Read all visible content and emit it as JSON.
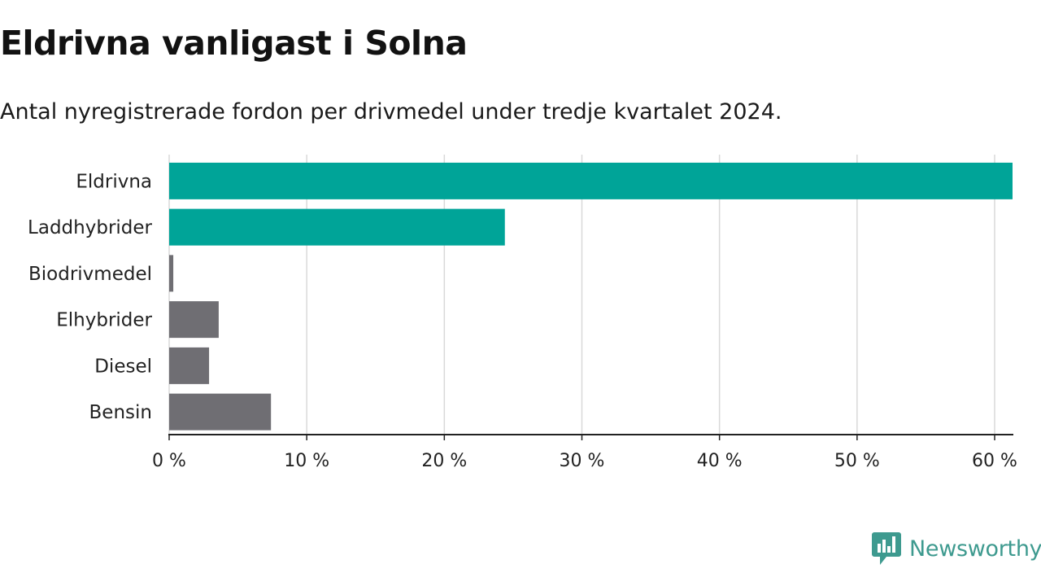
{
  "title": "Eldrivna vanligast i Solna",
  "subtitle": "Antal nyregistrerade fordon per drivmedel under tredje kvartalet 2024.",
  "brand": {
    "name": "Newsworthy",
    "icon": "newsworthy-logo-icon"
  },
  "colors": {
    "highlight": "#00a498",
    "muted": "#6f6e73",
    "grid": "#d9d9d9",
    "axis": "#222222",
    "brand": "#3e9a8f"
  },
  "chart_data": {
    "type": "bar",
    "orientation": "horizontal",
    "categories": [
      "Eldrivna",
      "Laddhybrider",
      "Biodrivmedel",
      "Elhybrider",
      "Diesel",
      "Bensin"
    ],
    "values": [
      61.3,
      24.4,
      0.3,
      3.6,
      2.9,
      7.4
    ],
    "highlighted": [
      true,
      true,
      false,
      false,
      false,
      false
    ],
    "xlim": [
      0,
      61.3
    ],
    "xticks": [
      0,
      10,
      20,
      30,
      40,
      50,
      60
    ],
    "xtick_labels": [
      "0 %",
      "10 %",
      "20 %",
      "30 %",
      "40 %",
      "50 %",
      "60 %"
    ],
    "xlabel": "",
    "ylabel": "",
    "grid": true,
    "legend": "none"
  }
}
